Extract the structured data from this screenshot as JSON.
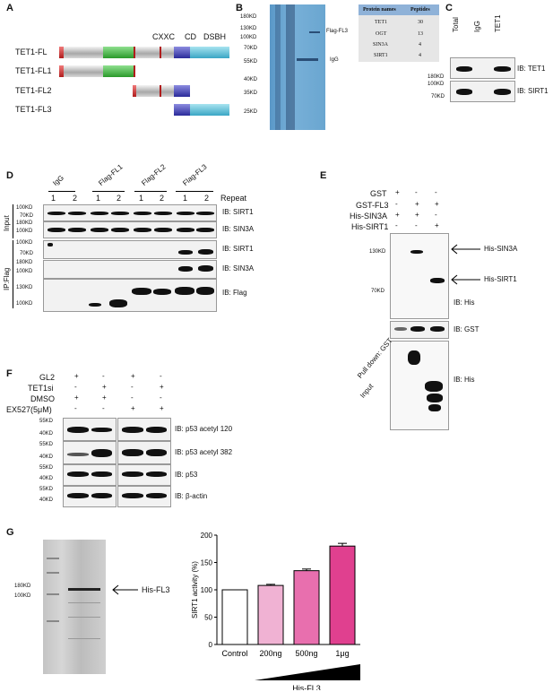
{
  "panelA": {
    "letter": "A",
    "rows": [
      "TET1-FL",
      "TET1-FL1",
      "TET1-FL2",
      "TET1-FL3"
    ],
    "domains": [
      "CXXC",
      "CD",
      "DSBH"
    ]
  },
  "panelB": {
    "letter": "B",
    "markers": [
      "180KD",
      "130KD",
      "100KD",
      "70KD",
      "55KD",
      "40KD",
      "35KD",
      "25KD"
    ],
    "labels": [
      "Flag-FL3",
      "IgG"
    ],
    "table": {
      "headers": [
        "Protein names",
        "Peptides"
      ],
      "rows": [
        [
          "TET1",
          "30"
        ],
        [
          "OGT",
          "13"
        ],
        [
          "SIN3A",
          "4"
        ],
        [
          "SIRT1",
          "4"
        ]
      ]
    }
  },
  "panelC": {
    "letter": "C",
    "lanes": [
      "Total",
      "IgG",
      "TET1"
    ],
    "markers": [
      "180KD",
      "100KD",
      "70KD"
    ],
    "blots": [
      "IB: TET1",
      "IB: SIRT1"
    ]
  },
  "panelD": {
    "letter": "D",
    "groups": [
      "IgG",
      "Flag-FL1",
      "Flag-FL2",
      "Flag-FL3"
    ],
    "repeat_nums": [
      "1",
      "2",
      "1",
      "2",
      "1",
      "2",
      "1",
      "2"
    ],
    "repeat_label": "Repeat",
    "side_labels": [
      "Input",
      "IP:Flag"
    ],
    "markers": [
      "100KD",
      "70KD",
      "180KD",
      "100KD",
      "100KD",
      "70KD",
      "180KD",
      "100KD",
      "130KD",
      "100KD"
    ],
    "blots": [
      "IB: SIRT1",
      "IB: SIN3A",
      "IB: SIRT1",
      "IB: SIN3A",
      "IB: Flag"
    ]
  },
  "panelE": {
    "letter": "E",
    "conditions": [
      {
        "name": "GST",
        "signs": [
          "+",
          "-",
          "-"
        ]
      },
      {
        "name": "GST-FL3",
        "signs": [
          "-",
          "+",
          "+"
        ]
      },
      {
        "name": "His-SIN3A",
        "signs": [
          "+",
          "+",
          "-"
        ]
      },
      {
        "name": "His-SIRT1",
        "signs": [
          "-",
          "-",
          "+"
        ]
      }
    ],
    "markers": [
      "130KD",
      "70KD"
    ],
    "arrows": [
      "His-SIN3A",
      "His-SIRT1"
    ],
    "blots": [
      "IB: His",
      "IB: GST",
      "IB: His"
    ],
    "side_labels": [
      "Pull down: GST",
      "Input"
    ]
  },
  "panelF": {
    "letter": "F",
    "conditions": [
      {
        "name": "GL2",
        "signs": [
          "+",
          "-",
          "+",
          "-"
        ]
      },
      {
        "name": "TET1si",
        "signs": [
          "-",
          "+",
          "-",
          "+"
        ]
      },
      {
        "name": "DMSO",
        "signs": [
          "+",
          "+",
          "-",
          "-"
        ]
      },
      {
        "name": "EX527(5μM)",
        "signs": [
          "-",
          "-",
          "+",
          "+"
        ]
      }
    ],
    "markers": [
      "55KD",
      "40KD",
      "55KD",
      "40KD",
      "55KD",
      "40KD",
      "55KD",
      "40KD"
    ],
    "blots": [
      "IB: p53 acetyl 120",
      "IB: p53 acetyl 382",
      "IB: p53",
      "IB: β-actin"
    ]
  },
  "panelG": {
    "letter": "G",
    "markers": [
      "180KD",
      "100KD"
    ],
    "arrow_label": "His-FL3",
    "gradient_label": "His-FL3",
    "chart_data": {
      "type": "bar",
      "categories": [
        "Control",
        "200ng",
        "500ng",
        "1μg"
      ],
      "values": [
        100,
        108,
        135,
        180
      ],
      "errors": [
        0,
        2,
        3,
        5
      ],
      "ylabel": "SIRT1 activity (%)",
      "yticks": [
        "0",
        "50",
        "100",
        "150",
        "200"
      ],
      "ylim": [
        0,
        200
      ],
      "colors": [
        "#ffffff",
        "#f0b2d3",
        "#e86fae",
        "#e0408f"
      ]
    }
  }
}
